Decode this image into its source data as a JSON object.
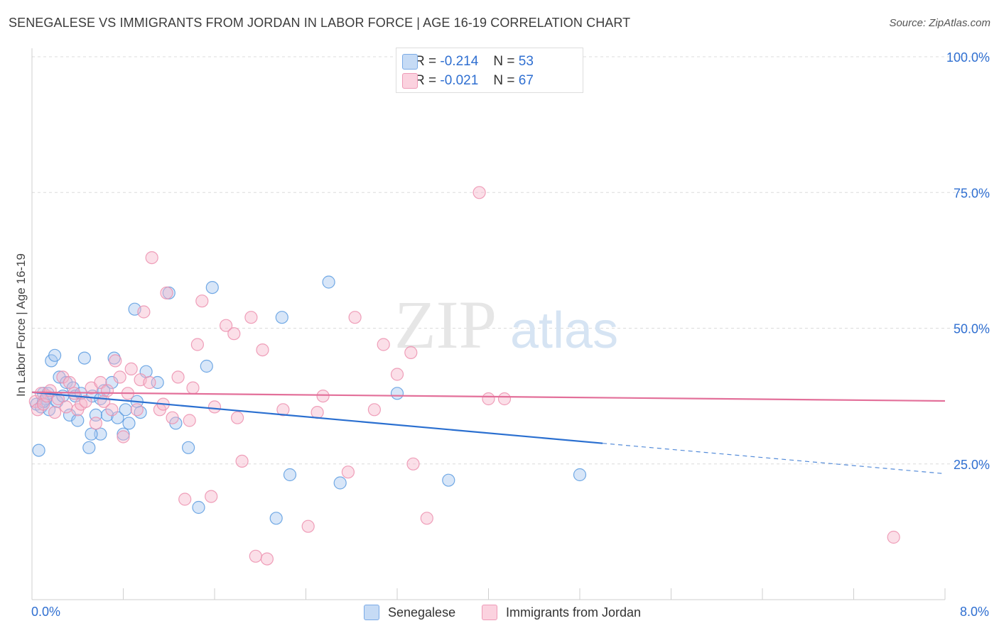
{
  "header": {
    "title": "SENEGALESE VS IMMIGRANTS FROM JORDAN IN LABOR FORCE | AGE 16-19 CORRELATION CHART",
    "source": "Source: ZipAtlas.com"
  },
  "watermark": {
    "zip": "ZIP",
    "atlas": "atlas"
  },
  "legend": {
    "r_label": "R =",
    "n_label": "N =",
    "items": [
      {
        "r": "-0.214",
        "n": "53",
        "color": "#a9c7f0"
      },
      {
        "r": "-0.021",
        "n": "67",
        "color": "#f6b8cc"
      }
    ]
  },
  "bottom_legend": {
    "items": [
      {
        "label": "Senegalese",
        "color": "#a9c7f0"
      },
      {
        "label": "Immigrants from Jordan",
        "color": "#f6b8cc"
      }
    ]
  },
  "chart_data": {
    "type": "scatter",
    "title": "SENEGALESE VS IMMIGRANTS FROM JORDAN IN LABOR FORCE | AGE 16-19 CORRELATION CHART",
    "xlabel": "",
    "ylabel": "In Labor Force | Age 16-19",
    "xlim": [
      0,
      8
    ],
    "ylim": [
      0,
      105
    ],
    "x_tick_labels": [
      "0.0%",
      "8.0%"
    ],
    "y_ticks": [
      25,
      50,
      75,
      100
    ],
    "y_tick_labels": [
      "25.0%",
      "50.0%",
      "75.0%",
      "100.0%"
    ],
    "grid": true,
    "legend_position": "top-center",
    "series": [
      {
        "name": "Senegalese",
        "color": "#5b9be0",
        "fill": "#a9c7f0",
        "line_color": "#2a6fd0",
        "r": -0.214,
        "n": 53,
        "trend": {
          "x0": 0.0,
          "y0": 38.2,
          "x1": 5.0,
          "y1": 28.8,
          "dash_to_x": 8.0,
          "dash_to_y": 23.2
        },
        "points": [
          [
            0.04,
            36
          ],
          [
            0.06,
            27.5
          ],
          [
            0.08,
            35.5
          ],
          [
            0.1,
            38
          ],
          [
            0.12,
            37
          ],
          [
            0.15,
            35
          ],
          [
            0.17,
            44
          ],
          [
            0.2,
            45
          ],
          [
            0.22,
            36.5
          ],
          [
            0.24,
            41
          ],
          [
            0.27,
            37.5
          ],
          [
            0.3,
            40
          ],
          [
            0.33,
            34
          ],
          [
            0.36,
            39
          ],
          [
            0.38,
            37.5
          ],
          [
            0.4,
            33
          ],
          [
            0.43,
            38
          ],
          [
            0.46,
            44.5
          ],
          [
            0.5,
            28
          ],
          [
            0.53,
            37.5
          ],
          [
            0.56,
            34
          ],
          [
            0.6,
            30.5
          ],
          [
            0.63,
            38.5
          ],
          [
            0.66,
            34
          ],
          [
            0.7,
            40
          ],
          [
            0.72,
            44.5
          ],
          [
            0.75,
            33.5
          ],
          [
            0.8,
            30.5
          ],
          [
            0.82,
            35
          ],
          [
            0.85,
            32.5
          ],
          [
            0.9,
            53.5
          ],
          [
            0.92,
            36.5
          ],
          [
            0.95,
            34.5
          ],
          [
            1.0,
            42
          ],
          [
            1.1,
            40
          ],
          [
            1.2,
            56.5
          ],
          [
            1.26,
            32.5
          ],
          [
            1.37,
            28
          ],
          [
            1.46,
            17
          ],
          [
            1.53,
            43
          ],
          [
            1.58,
            57.5
          ],
          [
            2.14,
            15
          ],
          [
            2.19,
            52
          ],
          [
            2.26,
            23
          ],
          [
            2.6,
            58.5
          ],
          [
            2.7,
            21.5
          ],
          [
            3.2,
            38
          ],
          [
            3.65,
            22
          ],
          [
            4.8,
            23
          ],
          [
            0.52,
            30.5
          ],
          [
            0.6,
            37
          ],
          [
            0.1,
            36.5
          ],
          [
            0.14,
            38
          ]
        ]
      },
      {
        "name": "Immigrants from Jordan",
        "color": "#ec8fae",
        "fill": "#f6b8cc",
        "line_color": "#e3709a",
        "r": -0.021,
        "n": 67,
        "trend": {
          "x0": 0.0,
          "y0": 38.2,
          "x1": 8.0,
          "y1": 36.6
        },
        "points": [
          [
            0.03,
            36.5
          ],
          [
            0.05,
            35
          ],
          [
            0.08,
            38
          ],
          [
            0.1,
            36
          ],
          [
            0.13,
            37.5
          ],
          [
            0.16,
            38.5
          ],
          [
            0.2,
            34.5
          ],
          [
            0.23,
            37
          ],
          [
            0.27,
            41
          ],
          [
            0.3,
            35.5
          ],
          [
            0.33,
            40
          ],
          [
            0.37,
            38
          ],
          [
            0.4,
            35
          ],
          [
            0.43,
            36
          ],
          [
            0.47,
            36.5
          ],
          [
            0.52,
            39
          ],
          [
            0.56,
            32.5
          ],
          [
            0.6,
            40
          ],
          [
            0.63,
            36.5
          ],
          [
            0.66,
            38.5
          ],
          [
            0.7,
            35
          ],
          [
            0.73,
            44
          ],
          [
            0.77,
            41
          ],
          [
            0.8,
            30
          ],
          [
            0.84,
            38
          ],
          [
            0.87,
            42.5
          ],
          [
            0.92,
            35
          ],
          [
            0.95,
            40.5
          ],
          [
            0.98,
            53
          ],
          [
            1.03,
            40
          ],
          [
            1.05,
            63
          ],
          [
            1.12,
            35
          ],
          [
            1.15,
            36
          ],
          [
            1.18,
            56.5
          ],
          [
            1.23,
            33.5
          ],
          [
            1.28,
            41
          ],
          [
            1.34,
            18.5
          ],
          [
            1.38,
            33
          ],
          [
            1.41,
            39
          ],
          [
            1.45,
            47
          ],
          [
            1.49,
            55
          ],
          [
            1.57,
            19
          ],
          [
            1.6,
            35.5
          ],
          [
            1.7,
            50.5
          ],
          [
            1.77,
            49
          ],
          [
            1.8,
            33.5
          ],
          [
            1.84,
            25.5
          ],
          [
            1.92,
            52
          ],
          [
            1.96,
            8
          ],
          [
            2.02,
            46
          ],
          [
            2.06,
            7.5
          ],
          [
            2.2,
            35
          ],
          [
            2.42,
            13.5
          ],
          [
            2.5,
            34.5
          ],
          [
            2.55,
            37.5
          ],
          [
            2.77,
            23.5
          ],
          [
            2.83,
            52
          ],
          [
            3.0,
            35
          ],
          [
            3.08,
            47
          ],
          [
            3.2,
            41.5
          ],
          [
            3.32,
            45.5
          ],
          [
            3.34,
            25
          ],
          [
            3.46,
            15
          ],
          [
            3.92,
            75
          ],
          [
            4.0,
            37
          ],
          [
            4.14,
            37
          ],
          [
            7.55,
            11.5
          ]
        ]
      }
    ]
  }
}
